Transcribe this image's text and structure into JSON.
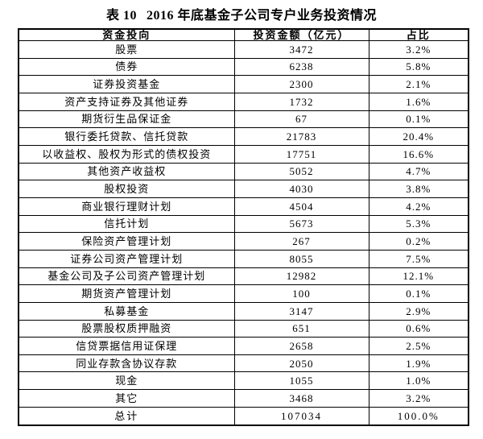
{
  "page": {
    "background_color": "#ffffff",
    "text_color": "#000000",
    "border_color": "#000000"
  },
  "title": {
    "label": "表 10",
    "text": "2016 年底基金子公司专户业务投资情况"
  },
  "table": {
    "columns": [
      "资金投向",
      "投资金额（亿元）",
      "占比"
    ],
    "rows": [
      {
        "label": "股票",
        "amount": "3472",
        "ratio": "3.2%"
      },
      {
        "label": "债券",
        "amount": "6238",
        "ratio": "5.8%"
      },
      {
        "label": "证券投资基金",
        "amount": "2300",
        "ratio": "2.1%"
      },
      {
        "label": "资产支持证券及其他证券",
        "amount": "1732",
        "ratio": "1.6%"
      },
      {
        "label": "期货衍生品保证金",
        "amount": "67",
        "ratio": "0.1%"
      },
      {
        "label": "银行委托贷款、信托贷款",
        "amount": "21783",
        "ratio": "20.4%"
      },
      {
        "label": "以收益权、股权为形式的债权投资",
        "amount": "17751",
        "ratio": "16.6%"
      },
      {
        "label": "其他资产收益权",
        "amount": "5052",
        "ratio": "4.7%"
      },
      {
        "label": "股权投资",
        "amount": "4030",
        "ratio": "3.8%"
      },
      {
        "label": "商业银行理财计划",
        "amount": "4504",
        "ratio": "4.2%"
      },
      {
        "label": "信托计划",
        "amount": "5673",
        "ratio": "5.3%"
      },
      {
        "label": "保险资产管理计划",
        "amount": "267",
        "ratio": "0.2%"
      },
      {
        "label": "证券公司资产管理计划",
        "amount": "8055",
        "ratio": "7.5%"
      },
      {
        "label": "基金公司及子公司资产管理计划",
        "amount": "12982",
        "ratio": "12.1%"
      },
      {
        "label": "期货资产管理计划",
        "amount": "100",
        "ratio": "0.1%"
      },
      {
        "label": "私募基金",
        "amount": "3147",
        "ratio": "2.9%"
      },
      {
        "label": "股票股权质押融资",
        "amount": "651",
        "ratio": "0.6%"
      },
      {
        "label": "信贷票据信用证保理",
        "amount": "2658",
        "ratio": "2.5%"
      },
      {
        "label": "同业存款含协议存款",
        "amount": "2050",
        "ratio": "1.9%"
      },
      {
        "label": "现金",
        "amount": "1055",
        "ratio": "1.0%"
      },
      {
        "label": "其它",
        "amount": "3468",
        "ratio": "3.2%"
      },
      {
        "label": "总计",
        "amount": "107034",
        "ratio": "100.0%"
      }
    ]
  }
}
